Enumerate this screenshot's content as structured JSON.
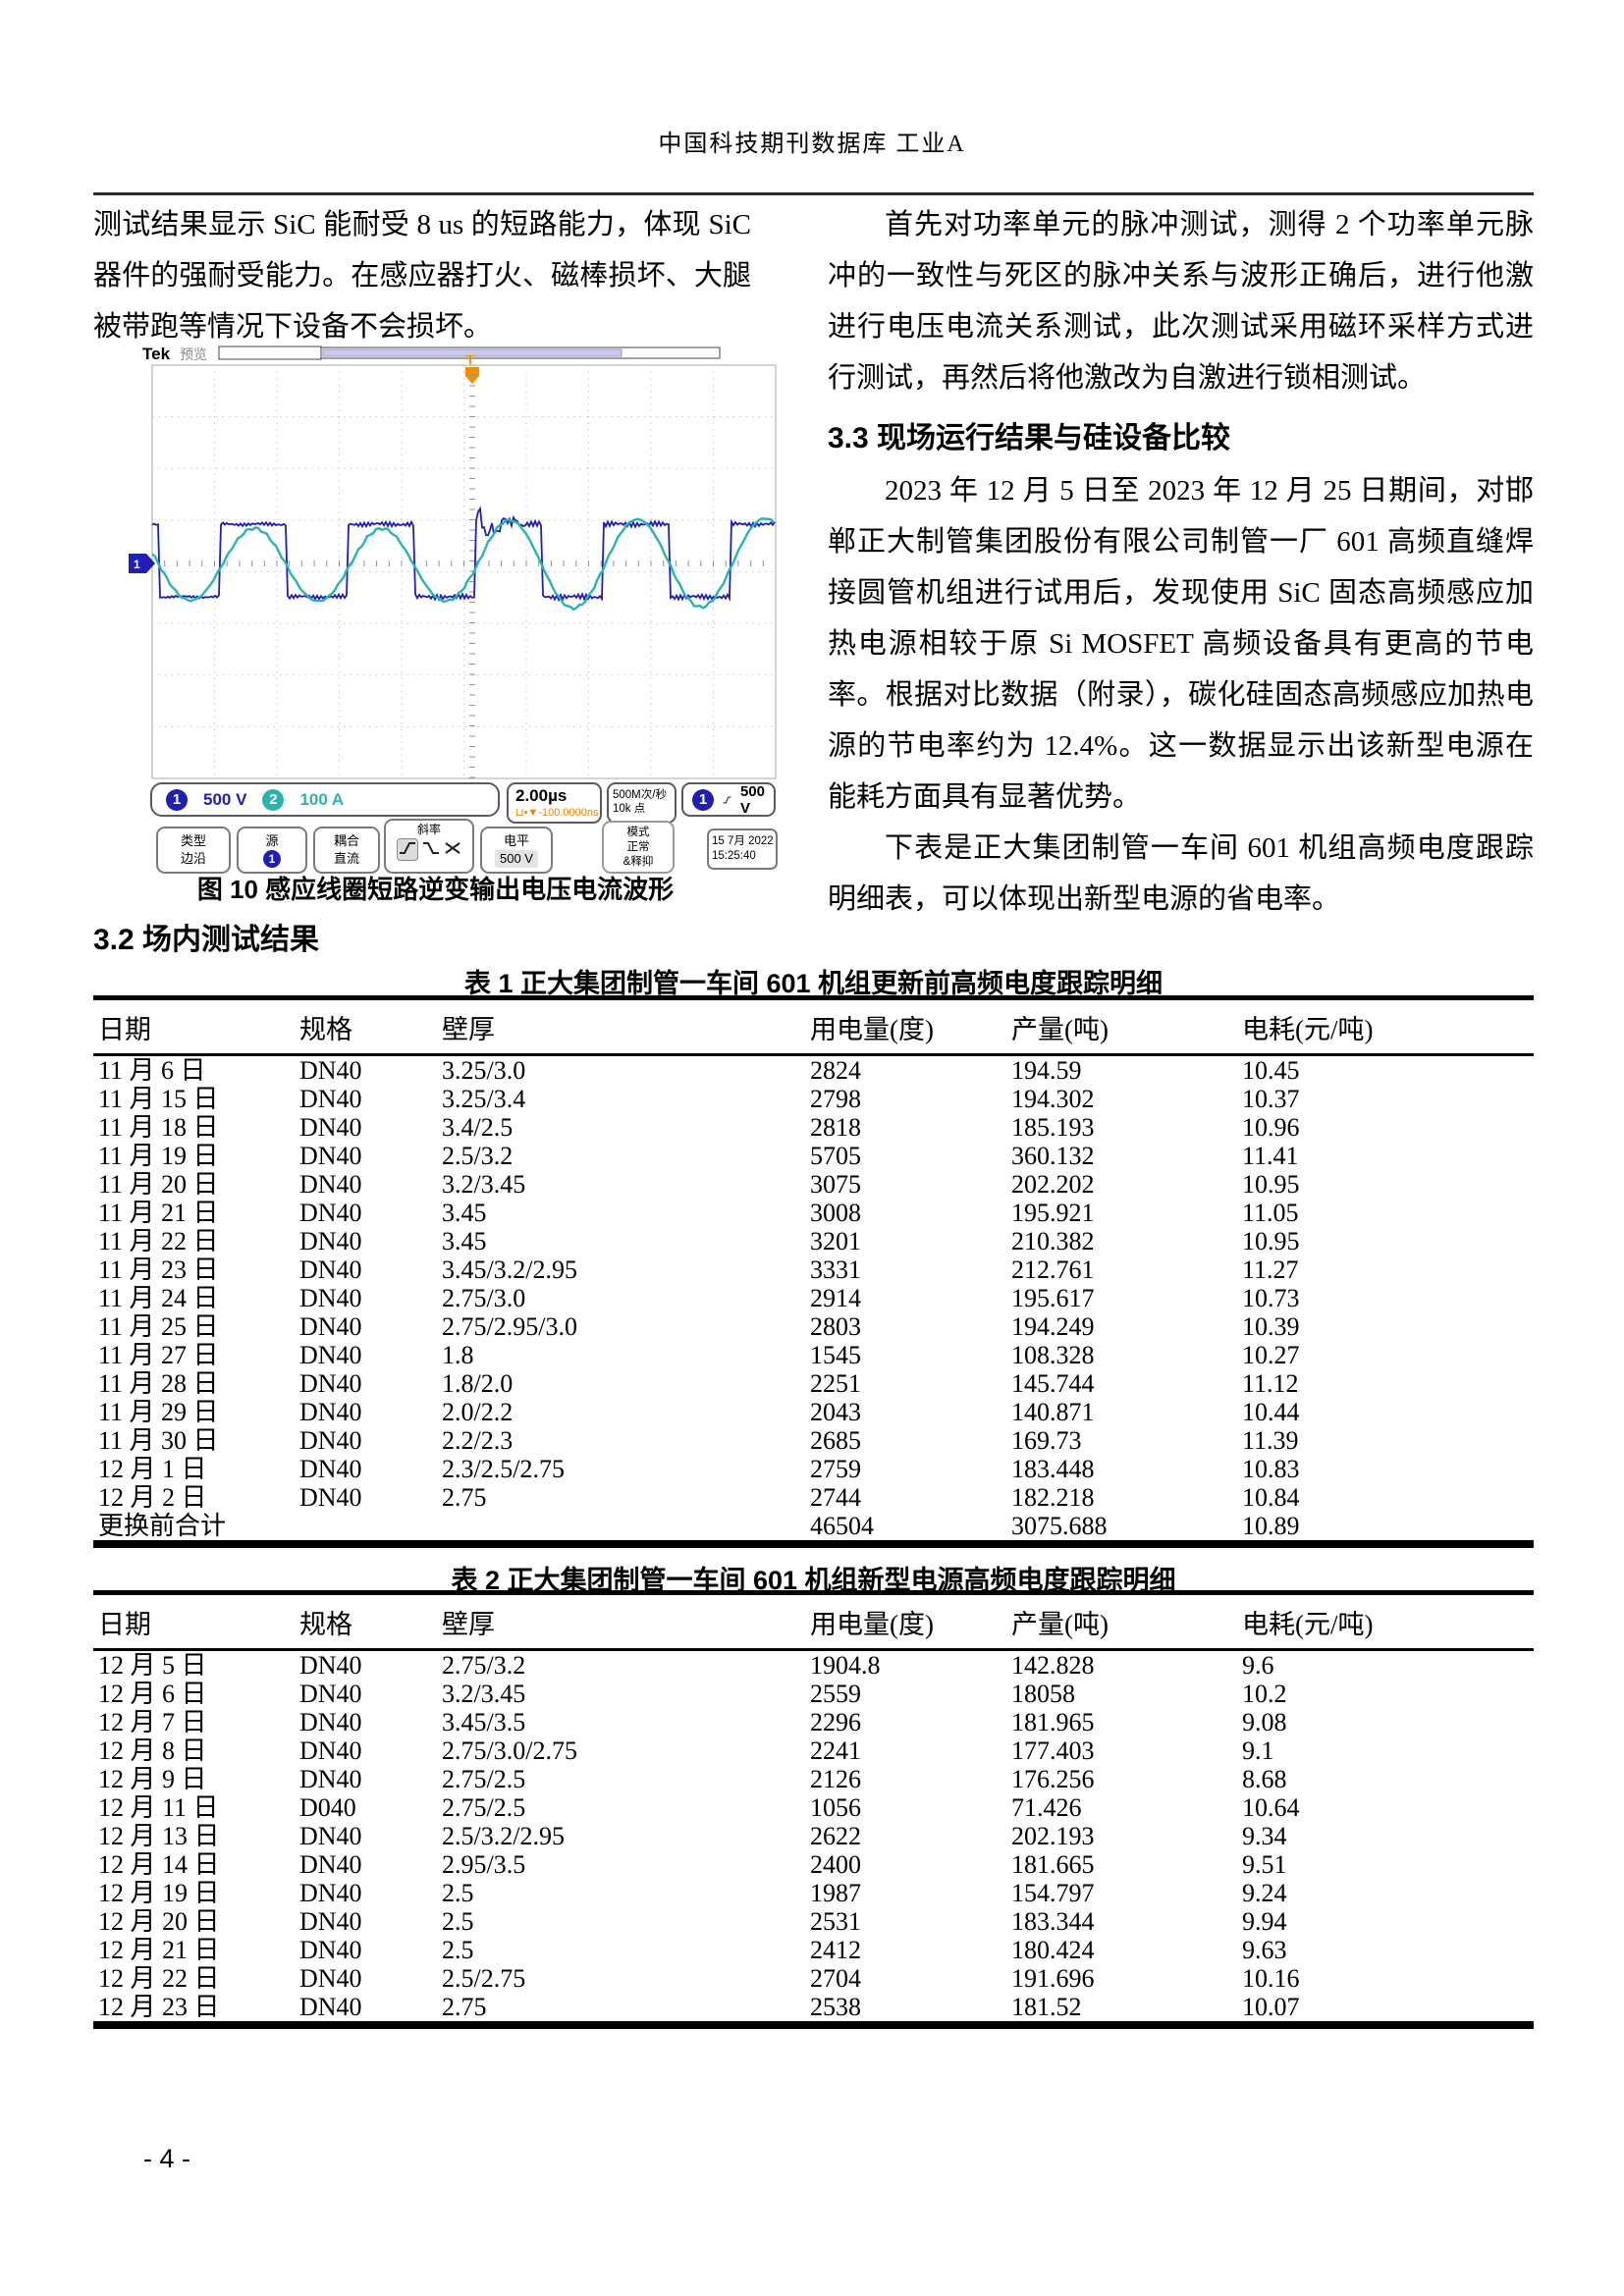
{
  "page": {
    "journal_header": "中国科技期刊数据库 工业A",
    "page_number": "- 4 -"
  },
  "left_column": {
    "paragraph": "测试结果显示 SiC 能耐受 8 us 的短路能力，体现 SiC 器件的强耐受能力。在感应器打火、磁棒损坏、大腿被带跑等情况下设备不会损坏。",
    "figure_caption": "图 10  感应线圈短路逆变输出电压电流波形",
    "section_heading": "3.2 场内测试结果"
  },
  "right_column": {
    "paragraph1": "首先对功率单元的脉冲测试，测得 2 个功率单元脉冲的一致性与死区的脉冲关系与波形正确后，进行他激进行电压电流关系测试，此次测试采用磁环采样方式进行测试，再然后将他激改为自激进行锁相测试。",
    "section_heading": "3.3 现场运行结果与硅设备比较",
    "paragraph2": "2023 年 12 月 5 日至 2023 年 12 月 25 日期间，对邯郸正大制管集团股份有限公司制管一厂 601 高频直缝焊接圆管机组进行试用后，发现使用 SiC 固态高频感应加热电源相较于原 Si MOSFET 高频设备具有更高的节电率。根据对比数据（附录），碳化硅固态高频感应加热电源的节电率约为 12.4%。这一数据显示出该新型电源在能耗方面具有显著优势。",
    "paragraph3": "下表是正大集团制管一车间 601 机组高频电度跟踪明细表，可以体现出新型电源的省电率。"
  },
  "oscilloscope": {
    "brand": "Tek",
    "acq_status": "预览",
    "ch1_badge": "1",
    "ch1_scale": "500 V",
    "ch2_badge": "2",
    "ch2_scale": "100 A",
    "timebase": "2.00µs",
    "trigger_position": "-100.0000ns",
    "sample_rate": "500M次/秒",
    "record_length": "10k 点",
    "trigger_source_badge": "1",
    "trigger_level": "500 V",
    "menu": {
      "type_label": "类型",
      "type_value": "边沿",
      "source_label": "源",
      "source_value": "1",
      "coupling_label": "耦合",
      "coupling_value": "直流",
      "slope_label": "斜率",
      "level_label": "电平",
      "level_value": "500 V",
      "mode_label": "模式",
      "mode_value": "正常",
      "mode_value2": "&释抑"
    },
    "date": "15 7月 2022",
    "time": "15:25:40",
    "colors": {
      "ch1": "#1f1fb4",
      "ch2": "#2ab5ac",
      "trigger": "#f09000"
    }
  },
  "table1": {
    "title": "表 1  正大集团制管一车间 601 机组更新前高频电度跟踪明细",
    "headers": [
      "日期",
      "规格",
      "壁厚",
      "用电量(度)",
      "产量(吨)",
      "电耗(元/吨)"
    ],
    "rows": [
      [
        "11 月 6 日",
        "DN40",
        "3.25/3.0",
        "2824",
        "194.59",
        "10.45"
      ],
      [
        "11 月 15 日",
        "DN40",
        "3.25/3.4",
        "2798",
        "194.302",
        "10.37"
      ],
      [
        "11 月 18 日",
        "DN40",
        "3.4/2.5",
        "2818",
        "185.193",
        "10.96"
      ],
      [
        "11 月 19 日",
        "DN40",
        "2.5/3.2",
        "5705",
        "360.132",
        "11.41"
      ],
      [
        "11 月 20 日",
        "DN40",
        "3.2/3.45",
        "3075",
        "202.202",
        "10.95"
      ],
      [
        "11 月 21 日",
        "DN40",
        "3.45",
        "3008",
        "195.921",
        "11.05"
      ],
      [
        "11 月 22 日",
        "DN40",
        "3.45",
        "3201",
        "210.382",
        "10.95"
      ],
      [
        "11 月 23 日",
        "DN40",
        "3.45/3.2/2.95",
        "3331",
        "212.761",
        "11.27"
      ],
      [
        "11 月 24 日",
        "DN40",
        "2.75/3.0",
        "2914",
        "195.617",
        "10.73"
      ],
      [
        "11 月 25 日",
        "DN40",
        "2.75/2.95/3.0",
        "2803",
        "194.249",
        "10.39"
      ],
      [
        "11 月 27 日",
        "DN40",
        "1.8",
        "1545",
        "108.328",
        "10.27"
      ],
      [
        "11 月 28 日",
        "DN40",
        "1.8/2.0",
        "2251",
        "145.744",
        "11.12"
      ],
      [
        "11 月 29 日",
        "DN40",
        "2.0/2.2",
        "2043",
        "140.871",
        "10.44"
      ],
      [
        "11 月 30 日",
        "DN40",
        "2.2/2.3",
        "2685",
        "169.73",
        "11.39"
      ],
      [
        "12 月 1 日",
        "DN40",
        "2.3/2.5/2.75",
        "2759",
        "183.448",
        "10.83"
      ],
      [
        "12 月 2 日",
        "DN40",
        "2.75",
        "2744",
        "182.218",
        "10.84"
      ],
      [
        "更换前合计",
        "",
        "",
        "46504",
        "3075.688",
        "10.89"
      ]
    ]
  },
  "table2": {
    "title": "表 2  正大集团制管一车间 601 机组新型电源高频电度跟踪明细",
    "headers": [
      "日期",
      "规格",
      "壁厚",
      "用电量(度)",
      "产量(吨)",
      "电耗(元/吨)"
    ],
    "rows": [
      [
        "12 月 5 日",
        "DN40",
        "2.75/3.2",
        "1904.8",
        "142.828",
        "9.6"
      ],
      [
        "12 月 6 日",
        "DN40",
        "3.2/3.45",
        "2559",
        "18058",
        "10.2"
      ],
      [
        "12 月 7 日",
        "DN40",
        "3.45/3.5",
        "2296",
        "181.965",
        "9.08"
      ],
      [
        "12 月 8 日",
        "DN40",
        "2.75/3.0/2.75",
        "2241",
        "177.403",
        "9.1"
      ],
      [
        "12 月 9 日",
        "DN40",
        "2.75/2.5",
        "2126",
        "176.256",
        "8.68"
      ],
      [
        "12 月 11 日",
        "D040",
        "2.75/2.5",
        "1056",
        "71.426",
        "10.64"
      ],
      [
        "12 月 13 日",
        "DN40",
        "2.5/3.2/2.95",
        "2622",
        "202.193",
        "9.34"
      ],
      [
        "12 月 14 日",
        "DN40",
        "2.95/3.5",
        "2400",
        "181.665",
        "9.51"
      ],
      [
        "12 月 19 日",
        "DN40",
        "2.5",
        "1987",
        "154.797",
        "9.24"
      ],
      [
        "12 月 20 日",
        "DN40",
        "2.5",
        "2531",
        "183.344",
        "9.94"
      ],
      [
        "12 月 21 日",
        "DN40",
        "2.5",
        "2412",
        "180.424",
        "9.63"
      ],
      [
        "12 月 22 日",
        "DN40",
        "2.5/2.75",
        "2704",
        "191.696",
        "10.16"
      ],
      [
        "12 月 23 日",
        "DN40",
        "2.75",
        "2538",
        "181.52",
        "10.07"
      ]
    ]
  }
}
